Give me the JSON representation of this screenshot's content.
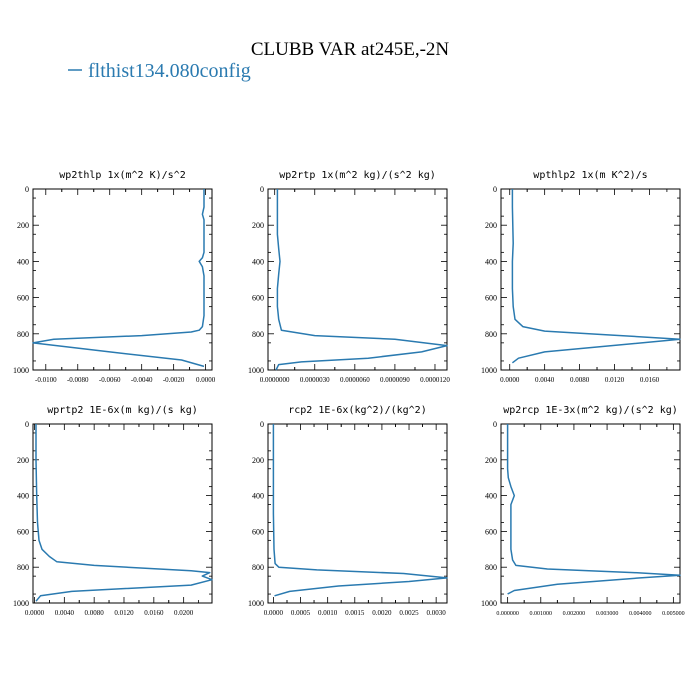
{
  "figure": {
    "title": "CLUBB VAR at245E,-2N",
    "legend_label": "flthist134.080config",
    "line_color": "#2a7ab0"
  },
  "chart_data": [
    {
      "type": "line",
      "title": "wp2thlp  1x(m^2 K)/s^2",
      "xlim": [
        -0.0108,
        0.0004
      ],
      "ylim": [
        1000,
        0
      ],
      "xticks": [
        -0.01,
        -0.008,
        -0.006,
        -0.004,
        -0.002,
        0.0
      ],
      "xtick_labels": [
        "-0.0100",
        "-0.0080",
        "-0.0060",
        "-0.0040",
        "-0.0020",
        "0.0000"
      ],
      "yticks": [
        0,
        200,
        400,
        600,
        800,
        1000
      ],
      "ytick_labels": [
        "0",
        "200",
        "400",
        "600",
        "800",
        "1000"
      ],
      "series": [
        {
          "x": [
            -0.0001,
            -0.0001,
            -0.0002,
            -0.0001,
            -0.0001,
            -0.0001,
            -0.0002,
            -0.0004,
            -0.0002,
            -0.0001,
            -0.0001,
            -0.0001,
            -0.0002,
            -0.0004,
            -0.0009,
            -0.004,
            -0.0095,
            -0.0108,
            -0.0098,
            -0.006,
            -0.0015,
            -0.0001
          ],
          "y": [
            0,
            100,
            140,
            170,
            250,
            350,
            380,
            400,
            430,
            480,
            600,
            700,
            760,
            780,
            790,
            810,
            830,
            850,
            860,
            900,
            945,
            980
          ]
        }
      ]
    },
    {
      "type": "line",
      "title": "wp2rtp  1x(m^2 kg)/(s^2 kg)",
      "xlim": [
        -5e-07,
        1.29e-05
      ],
      "ylim": [
        1000,
        0
      ],
      "xticks": [
        0.0,
        3e-06,
        6e-06,
        9e-06,
        1.2e-05
      ],
      "xtick_labels": [
        "0.0000000",
        "0.0000030",
        "0.0000060",
        "0.0000090",
        "0.0000120"
      ],
      "yticks": [
        0,
        200,
        400,
        600,
        800,
        1000
      ],
      "ytick_labels": [
        "0",
        "200",
        "400",
        "600",
        "800",
        "1000"
      ],
      "series": [
        {
          "x": [
            2e-07,
            2e-07,
            2e-07,
            3e-07,
            4e-07,
            3e-07,
            2e-07,
            2e-07,
            3e-07,
            5e-07,
            3e-06,
            9e-06,
            1.29e-05,
            1.1e-05,
            7e-06,
            2e-06,
            3e-07,
            1e-07
          ],
          "y": [
            0,
            100,
            250,
            330,
            400,
            470,
            550,
            650,
            720,
            780,
            810,
            830,
            865,
            900,
            935,
            955,
            970,
            1000
          ]
        }
      ]
    },
    {
      "type": "line",
      "title": "wpthlp2  1x(m K^2)/s",
      "xlim": [
        -0.001,
        0.0195
      ],
      "ylim": [
        1000,
        0
      ],
      "xticks": [
        0.0,
        0.004,
        0.008,
        0.012,
        0.016
      ],
      "xtick_labels": [
        "0.0000",
        "0.0040",
        "0.0080",
        "0.0120",
        "0.0160"
      ],
      "yticks": [
        0,
        200,
        400,
        600,
        800,
        1000
      ],
      "ytick_labels": [
        "0",
        "200",
        "400",
        "600",
        "800",
        "1000"
      ],
      "series": [
        {
          "x": [
            0.0003,
            0.0003,
            0.0004,
            0.0003,
            0.0003,
            0.0003,
            0.0004,
            0.0006,
            0.0015,
            0.004,
            0.011,
            0.0195,
            0.014,
            0.004,
            0.001,
            0.0003
          ],
          "y": [
            0,
            100,
            300,
            400,
            450,
            550,
            650,
            720,
            760,
            785,
            805,
            830,
            855,
            900,
            935,
            960
          ]
        }
      ]
    },
    {
      "type": "line",
      "title": "wprtp2  1E-6x(m kg)/(s kg)",
      "xlim": [
        -0.0002,
        0.0238
      ],
      "ylim": [
        1000,
        0
      ],
      "xticks": [
        0.0,
        0.004,
        0.008,
        0.012,
        0.016,
        0.02
      ],
      "xtick_labels": [
        "0.0000",
        "0.0040",
        "0.0080",
        "0.0120",
        "0.0160",
        "0.0200"
      ],
      "yticks": [
        0,
        200,
        400,
        600,
        800,
        1000
      ],
      "ytick_labels": [
        "0",
        "200",
        "400",
        "600",
        "800",
        "1000"
      ],
      "series": [
        {
          "x": [
            0.0002,
            0.0002,
            0.0003,
            0.0004,
            0.0006,
            0.001,
            0.002,
            0.003,
            0.008,
            0.021,
            0.0235,
            0.0225,
            0.0238,
            0.021,
            0.005,
            0.0008,
            0.0002
          ],
          "y": [
            0,
            200,
            400,
            550,
            650,
            700,
            740,
            770,
            790,
            820,
            830,
            850,
            870,
            900,
            935,
            960,
            990
          ]
        }
      ]
    },
    {
      "type": "line",
      "title": "rcp2  1E-6x(kg^2)/(kg^2)",
      "xlim": [
        -0.0001,
        0.0032
      ],
      "ylim": [
        1000,
        0
      ],
      "xticks": [
        0.0,
        0.0005,
        0.001,
        0.0015,
        0.002,
        0.0025,
        0.003
      ],
      "xtick_labels": [
        "0.0000",
        "0.0005",
        "0.0010",
        "0.0015",
        "0.0020",
        "0.0025",
        "0.0030"
      ],
      "yticks": [
        0,
        200,
        400,
        600,
        800,
        1000
      ],
      "ytick_labels": [
        "0",
        "200",
        "400",
        "600",
        "800",
        "1000"
      ],
      "series": [
        {
          "x": [
            0.0,
            0.0,
            0.0,
            1e-05,
            3e-05,
            0.0001,
            0.0008,
            0.0024,
            0.0032,
            0.0025,
            0.0012,
            0.0003,
            2e-05
          ],
          "y": [
            0,
            200,
            500,
            700,
            780,
            800,
            815,
            835,
            860,
            880,
            905,
            935,
            960
          ]
        }
      ]
    },
    {
      "type": "line",
      "title": "wp2rcp  1E-3x(m^2 kg)/(s^2 kg)",
      "xlim": [
        -0.0002,
        0.0052
      ],
      "ylim": [
        1000,
        0
      ],
      "xticks": [
        0.0,
        0.001,
        0.002,
        0.003,
        0.004,
        0.005
      ],
      "xtick_labels": [
        "0.000000",
        "0.001000",
        "0.002000",
        "0.003000",
        "0.004000",
        "0.005000"
      ],
      "yticks": [
        0,
        200,
        400,
        600,
        800,
        1000
      ],
      "ytick_labels": [
        "0",
        "200",
        "400",
        "600",
        "800",
        "1000"
      ],
      "series": [
        {
          "x": [
            0.0,
            0.0,
            2e-05,
            0.0001,
            0.0002,
            0.0001,
            0.0001,
            0.0001,
            0.00015,
            0.00025,
            0.0012,
            0.0038,
            0.0052,
            0.004,
            0.0015,
            0.0002,
            0.0
          ],
          "y": [
            0,
            250,
            300,
            350,
            400,
            450,
            550,
            700,
            760,
            790,
            810,
            830,
            845,
            860,
            895,
            930,
            950
          ]
        }
      ]
    }
  ]
}
